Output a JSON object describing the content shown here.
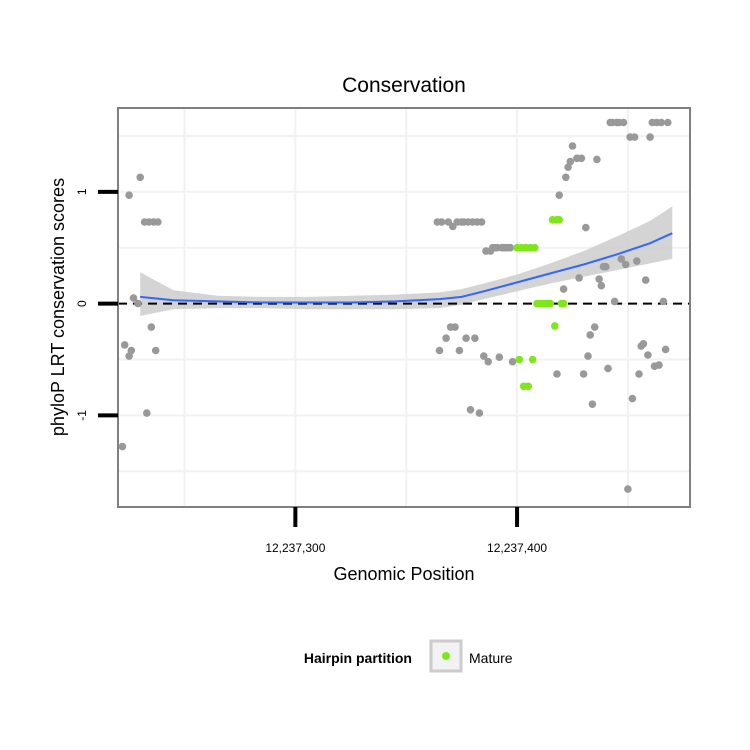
{
  "chart_data": {
    "type": "scatter",
    "title": "Conservation",
    "xlabel": "Genomic Position",
    "ylabel": "phyloP LRT conservation scores",
    "xlim": [
      12237220,
      12237478
    ],
    "ylim": [
      -1.82,
      1.75
    ],
    "x_ticks": [
      {
        "value": 12237300,
        "label": "12,237,300"
      },
      {
        "value": 12237400,
        "label": "12,237,400"
      }
    ],
    "y_ticks": [
      {
        "value": -1,
        "label": "-1"
      },
      {
        "value": 0,
        "label": "0"
      },
      {
        "value": 1,
        "label": "1"
      }
    ],
    "reference_line": {
      "y": 0,
      "style": "dashed"
    },
    "colors": {
      "other": "#999999",
      "mature": "#7fe61a",
      "smooth": "#3366ff",
      "band": "#cccccc",
      "panel_border": "#7f7f7f",
      "grid": "#f2f2f2"
    },
    "legend": {
      "title": "Hairpin partition",
      "entries": [
        {
          "label": "Mature",
          "color": "#7fe61a"
        }
      ]
    },
    "smooth": {
      "x": [
        12237230,
        12237245,
        12237265,
        12237285,
        12237305,
        12237325,
        12237345,
        12237365,
        12237375,
        12237385,
        12237400,
        12237415,
        12237430,
        12237445,
        12237460,
        12237470
      ],
      "y": [
        0.06,
        0.03,
        0.02,
        0.01,
        0.01,
        0.01,
        0.02,
        0.04,
        0.06,
        0.11,
        0.19,
        0.27,
        0.35,
        0.44,
        0.54,
        0.63
      ],
      "lower": [
        -0.11,
        -0.05,
        -0.04,
        -0.04,
        -0.05,
        -0.05,
        -0.05,
        -0.04,
        -0.01,
        0.04,
        0.11,
        0.18,
        0.24,
        0.3,
        0.36,
        0.4
      ],
      "upper": [
        0.28,
        0.12,
        0.07,
        0.06,
        0.06,
        0.07,
        0.08,
        0.1,
        0.13,
        0.18,
        0.26,
        0.36,
        0.47,
        0.6,
        0.74,
        0.87
      ]
    },
    "series": [
      {
        "name": "Other",
        "points": [
          [
            12237222,
            -1.28
          ],
          [
            12237223,
            -0.37
          ],
          [
            12237225,
            -0.47
          ],
          [
            12237225,
            0.97
          ],
          [
            12237226,
            -0.42
          ],
          [
            12237227,
            0.05
          ],
          [
            12237229,
            0.0
          ],
          [
            12237230,
            1.13
          ],
          [
            12237232,
            0.73
          ],
          [
            12237233,
            -0.98
          ],
          [
            12237234,
            0.73
          ],
          [
            12237235,
            -0.21
          ],
          [
            12237236,
            0.73
          ],
          [
            12237237,
            -0.42
          ],
          [
            12237238,
            0.73
          ],
          [
            12237364,
            0.73
          ],
          [
            12237365,
            -0.42
          ],
          [
            12237366,
            0.73
          ],
          [
            12237368,
            -0.31
          ],
          [
            12237369,
            0.73
          ],
          [
            12237370,
            -0.21
          ],
          [
            12237371,
            0.69
          ],
          [
            12237372,
            -0.21
          ],
          [
            12237373,
            0.73
          ],
          [
            12237374,
            -0.42
          ],
          [
            12237375,
            0.73
          ],
          [
            12237376,
            0.73
          ],
          [
            12237377,
            -0.31
          ],
          [
            12237378,
            0.73
          ],
          [
            12237379,
            -0.95
          ],
          [
            12237380,
            0.73
          ],
          [
            12237381,
            -0.31
          ],
          [
            12237382,
            0.73
          ],
          [
            12237383,
            -0.98
          ],
          [
            12237384,
            0.73
          ],
          [
            12237385,
            -0.47
          ],
          [
            12237386,
            0.47
          ],
          [
            12237387,
            -0.52
          ],
          [
            12237388,
            0.47
          ],
          [
            12237389,
            0.5
          ],
          [
            12237390,
            0.5
          ],
          [
            12237391,
            0.5
          ],
          [
            12237392,
            -0.48
          ],
          [
            12237393,
            0.5
          ],
          [
            12237394,
            0.5
          ],
          [
            12237395,
            0.5
          ],
          [
            12237396,
            0.5
          ],
          [
            12237397,
            0.5
          ],
          [
            12237398,
            -0.52
          ],
          [
            12237418,
            -0.63
          ],
          [
            12237419,
            0.97
          ],
          [
            12237421,
            0.13
          ],
          [
            12237422,
            1.13
          ],
          [
            12237423,
            1.22
          ],
          [
            12237424,
            1.27
          ],
          [
            12237425,
            1.41
          ],
          [
            12237427,
            1.3
          ],
          [
            12237428,
            0.23
          ],
          [
            12237429,
            1.3
          ],
          [
            12237430,
            -0.63
          ],
          [
            12237431,
            0.68
          ],
          [
            12237432,
            -0.47
          ],
          [
            12237433,
            -0.28
          ],
          [
            12237434,
            -0.9
          ],
          [
            12237435,
            -0.21
          ],
          [
            12237436,
            1.29
          ],
          [
            12237437,
            0.22
          ],
          [
            12237438,
            0.16
          ],
          [
            12237439,
            0.33
          ],
          [
            12237440,
            0.33
          ],
          [
            12237441,
            -0.58
          ],
          [
            12237442,
            1.62
          ],
          [
            12237443,
            1.62
          ],
          [
            12237444,
            0.02
          ],
          [
            12237445,
            1.62
          ],
          [
            12237446,
            1.62
          ],
          [
            12237447,
            0.4
          ],
          [
            12237448,
            1.62
          ],
          [
            12237449,
            0.35
          ],
          [
            12237450,
            -1.66
          ],
          [
            12237451,
            1.49
          ],
          [
            12237452,
            -0.85
          ],
          [
            12237453,
            1.49
          ],
          [
            12237454,
            0.38
          ],
          [
            12237455,
            -0.63
          ],
          [
            12237456,
            -0.38
          ],
          [
            12237457,
            -0.36
          ],
          [
            12237458,
            0.21
          ],
          [
            12237459,
            -0.46
          ],
          [
            12237460,
            1.49
          ],
          [
            12237461,
            1.62
          ],
          [
            12237462,
            -0.56
          ],
          [
            12237463,
            1.62
          ],
          [
            12237464,
            -0.55
          ],
          [
            12237465,
            1.62
          ],
          [
            12237466,
            0.02
          ],
          [
            12237467,
            -0.41
          ],
          [
            12237468,
            1.62
          ]
        ]
      },
      {
        "name": "Mature",
        "points": [
          [
            12237400,
            0.5
          ],
          [
            12237401,
            -0.5
          ],
          [
            12237402,
            0.5
          ],
          [
            12237403,
            -0.74
          ],
          [
            12237404,
            0.5
          ],
          [
            12237405,
            -0.74
          ],
          [
            12237406,
            0.5
          ],
          [
            12237407,
            -0.5
          ],
          [
            12237408,
            0.5
          ],
          [
            12237409,
            0.0
          ],
          [
            12237410,
            0.0
          ],
          [
            12237411,
            0.0
          ],
          [
            12237412,
            0.0
          ],
          [
            12237413,
            0.0
          ],
          [
            12237414,
            0.0
          ],
          [
            12237415,
            0.0
          ],
          [
            12237416,
            0.75
          ],
          [
            12237417,
            -0.2
          ],
          [
            12237418,
            0.75
          ],
          [
            12237419,
            0.75
          ],
          [
            12237420,
            0.0
          ],
          [
            12237421,
            0.0
          ]
        ]
      }
    ]
  }
}
